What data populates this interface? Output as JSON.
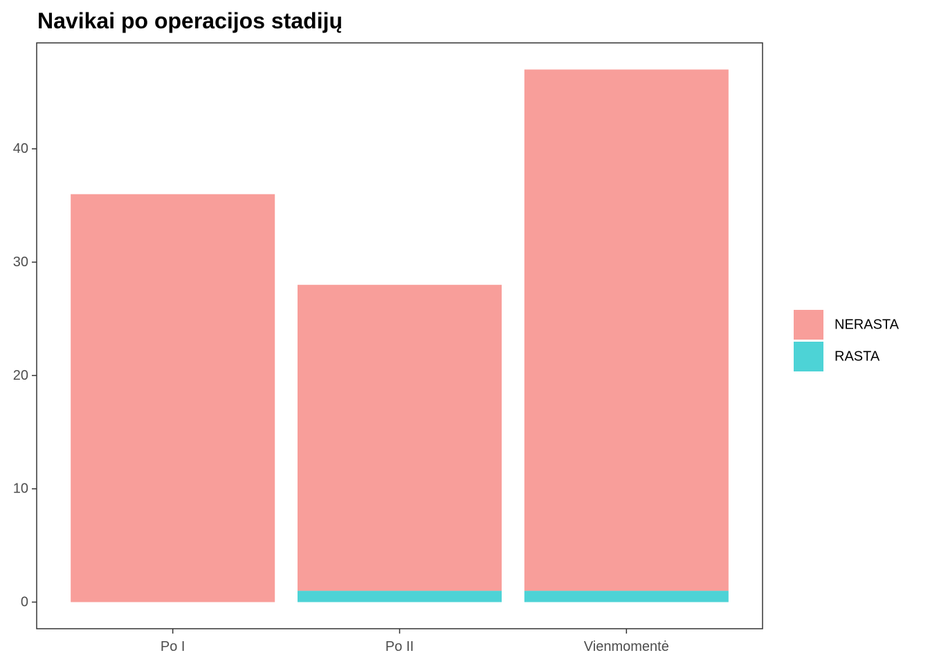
{
  "chart_data": {
    "type": "bar",
    "stacked": true,
    "title": "Navikai po operacijos stadijų",
    "xlabel": "",
    "ylabel": "",
    "categories": [
      "Po I",
      "Po II",
      "Vienmomentė"
    ],
    "series": [
      {
        "name": "RASTA",
        "values": [
          0,
          1,
          1
        ],
        "color": "#4DD3D6"
      },
      {
        "name": "NERASTA",
        "values": [
          36,
          27,
          46
        ],
        "color": "#F89E9A"
      }
    ],
    "ylim": [
      -2.35,
      49.35
    ],
    "yticks": [
      0,
      10,
      20,
      30,
      40
    ],
    "grid": false,
    "legend": {
      "position": "right",
      "order": [
        "NERASTA",
        "RASTA"
      ]
    }
  }
}
